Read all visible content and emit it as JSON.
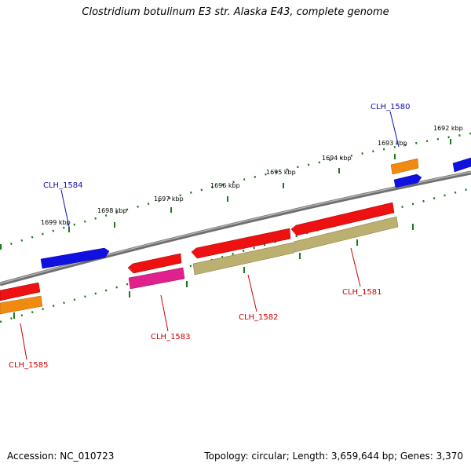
{
  "title": "Clostridium botulinum E3 str. Alaska E43, complete genome",
  "footer": {
    "accession": "Accession: NC_010723",
    "info": "Topology: circular; Length: 3,659,644 bp; Genes: 3,370"
  },
  "scale_ticks": [
    "1692 kbp",
    "1693 kbp",
    "1694 kbp",
    "1695 kbp",
    "1696 kbp",
    "1697 kbp",
    "1698 kbp",
    "1699 kbp"
  ],
  "gene_labels": {
    "clh_1580": "CLH_1580",
    "clh_1581": "CLH_1581",
    "clh_1582": "CLH_1582",
    "clh_1583": "CLH_1583",
    "clh_1584": "CLH_1584",
    "clh_1585": "CLH_1585"
  },
  "colors": {
    "forward_cds": "#1010e0",
    "reverse_cds": "#ee1111",
    "orange_feature": "#f08a10",
    "magenta_feature": "#e0208c",
    "olive_feature": "#bcb070",
    "backbone": "#8a8a8a",
    "tick": "#1a7a1a",
    "label_blue": "#1010b0",
    "label_red": "#cc0000"
  }
}
